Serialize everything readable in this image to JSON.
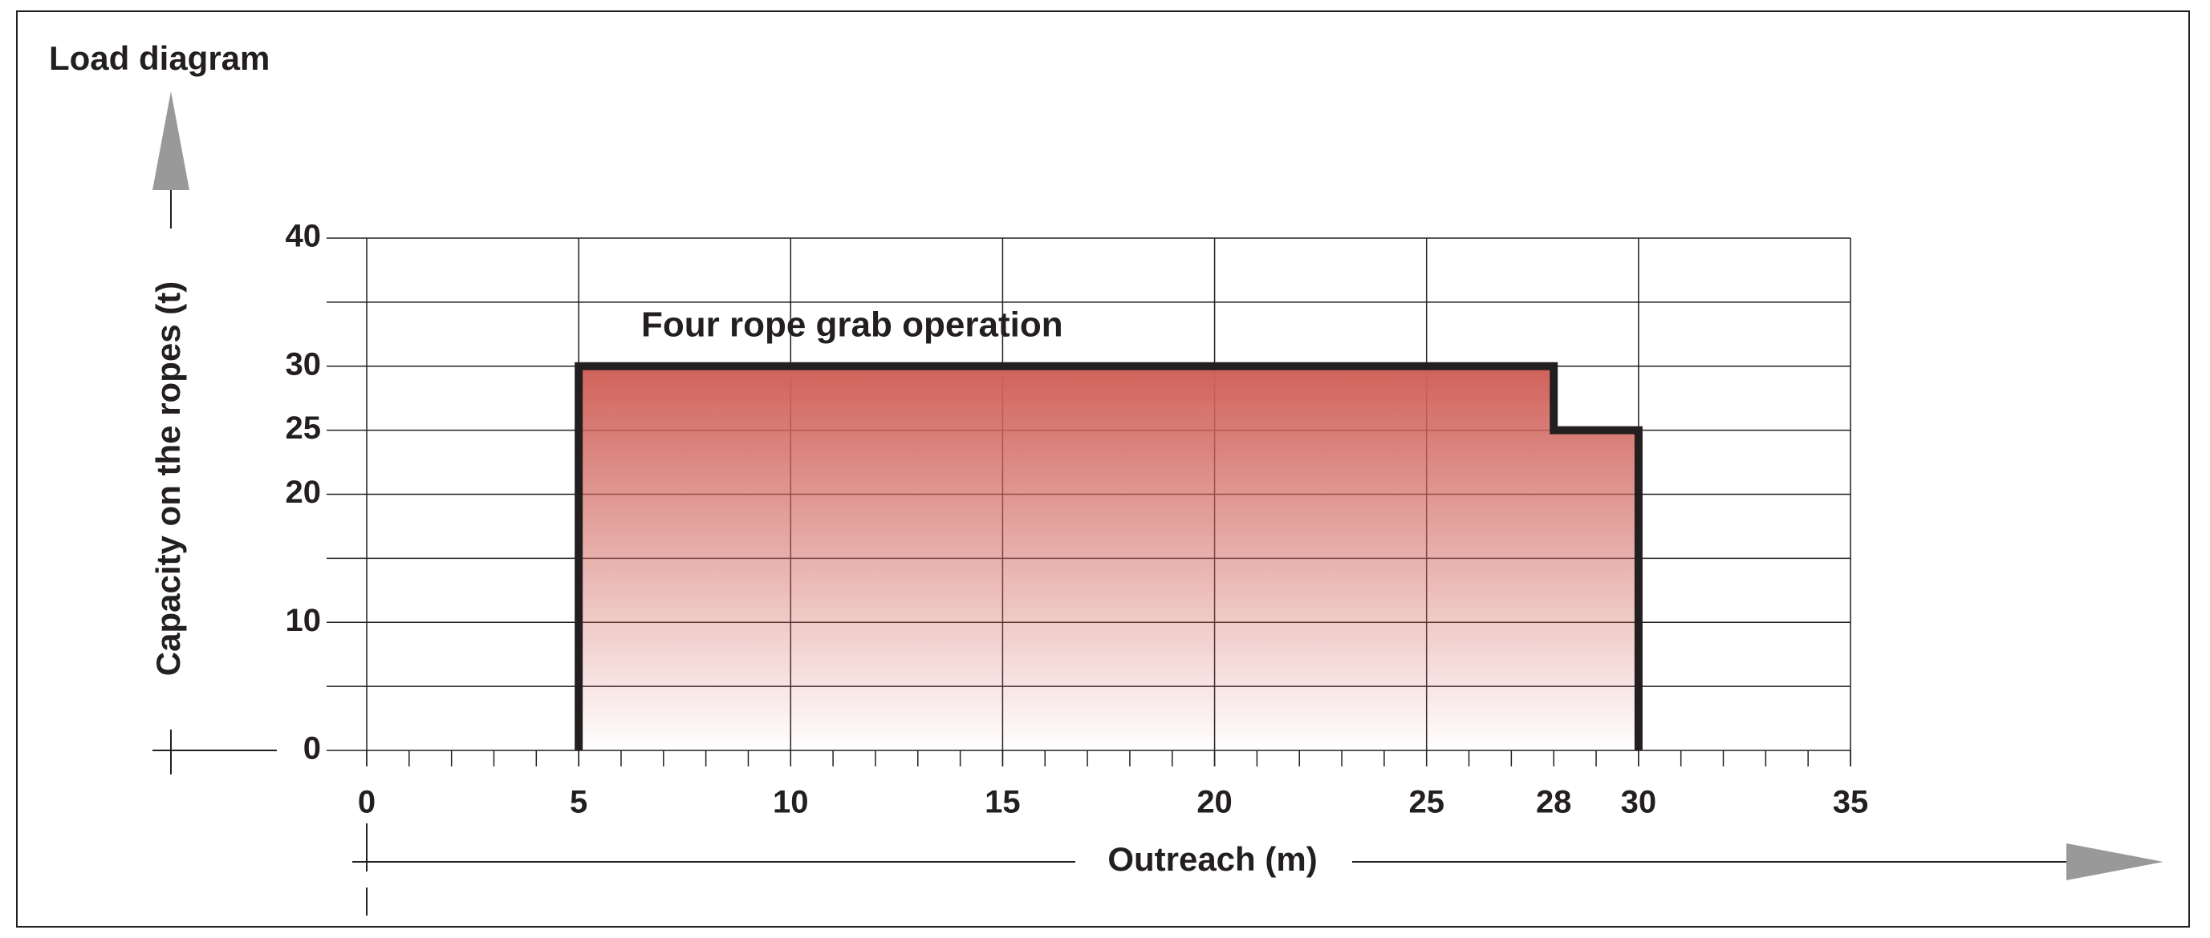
{
  "chart_data": {
    "type": "area",
    "title": "Load diagram",
    "x_label": "Outreach (m)",
    "y_label": "Capacity on the ropes (t)",
    "annotation": "Four rope grab operation",
    "x": [
      5,
      5,
      28,
      28,
      30,
      30
    ],
    "values": [
      0,
      30,
      30,
      25,
      25,
      0
    ],
    "line_color": "#231f20",
    "color": "#d0625a",
    "xlim": [
      0,
      35
    ],
    "ylim": [
      0,
      40
    ],
    "xticks": [
      0,
      5,
      10,
      15,
      20,
      25,
      28,
      30,
      35
    ],
    "yticks": [
      0,
      10,
      20,
      25,
      30,
      40
    ],
    "xgrid": [
      0,
      5,
      10,
      15,
      20,
      25,
      30,
      35
    ],
    "ygrid": [
      0,
      5,
      10,
      15,
      20,
      25,
      30,
      35,
      40
    ],
    "xminor_step": 1,
    "grid": true
  }
}
